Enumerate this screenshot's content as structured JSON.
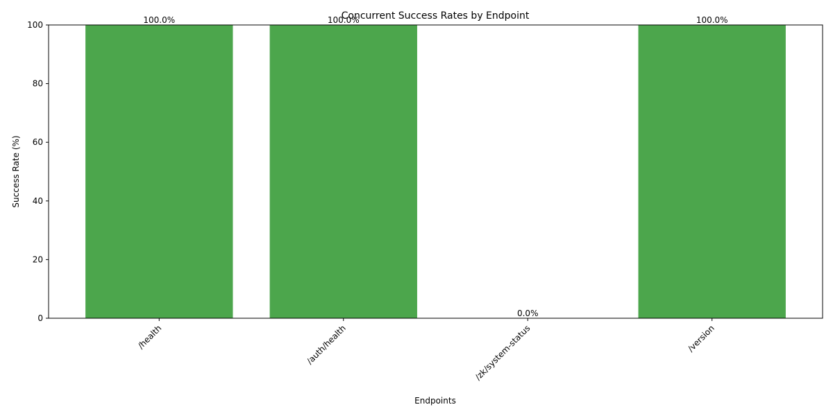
{
  "chart_data": {
    "type": "bar",
    "title": "Concurrent Success Rates by Endpoint",
    "xlabel": "Endpoints",
    "ylabel": "Success Rate (%)",
    "categories": [
      "/health",
      "/auth/health",
      "/zk/system-status",
      "/version"
    ],
    "values": [
      100.0,
      100.0,
      0.0,
      100.0
    ],
    "data_labels": [
      "100.0%",
      "100.0%",
      "0.0%",
      "100.0%"
    ],
    "ylim": [
      0,
      100
    ],
    "yticks": [
      0,
      20,
      40,
      60,
      80,
      100
    ],
    "ytick_labels": [
      "0",
      "20",
      "40",
      "60",
      "80",
      "100"
    ],
    "grid": false,
    "legend": "none",
    "bar_color": "#4ca64c"
  }
}
